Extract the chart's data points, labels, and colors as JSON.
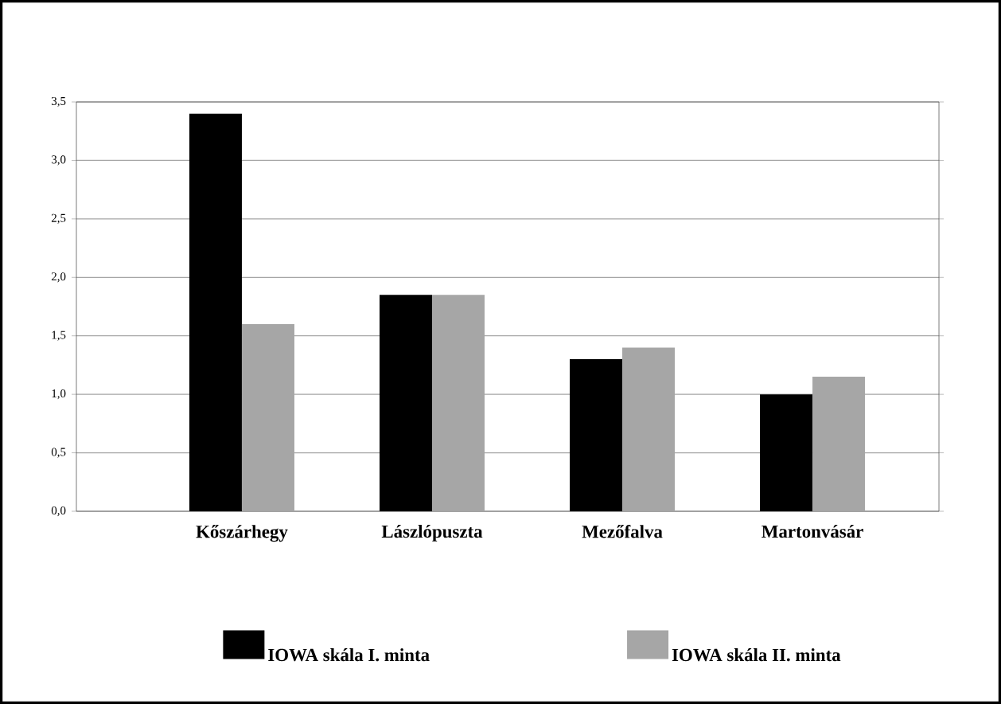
{
  "chart_data": {
    "type": "bar",
    "categories": [
      "Kőszárhegy",
      "Lászlópuszta",
      "Mezőfalva",
      "Martonvásár"
    ],
    "series": [
      {
        "name": "IOWA skála I. minta",
        "color": "#000000",
        "values": [
          3.4,
          1.85,
          1.3,
          1.0
        ]
      },
      {
        "name": "IOWA skála II. minta",
        "color": "#a6a6a6",
        "values": [
          1.6,
          1.85,
          1.4,
          1.15
        ]
      }
    ],
    "ylim": [
      0,
      3.5
    ],
    "yticks": [
      {
        "value": 0,
        "label": "0,0"
      },
      {
        "value": 0.5,
        "label": "0,5"
      },
      {
        "value": 1,
        "label": "1,0"
      },
      {
        "value": 1.5,
        "label": "1,5"
      },
      {
        "value": 2,
        "label": "2,0"
      },
      {
        "value": 2.5,
        "label": "2,5"
      },
      {
        "value": 3,
        "label": "3,0"
      },
      {
        "value": 3.5,
        "label": "3,5"
      }
    ],
    "grid": "y",
    "legend": "bottom"
  }
}
